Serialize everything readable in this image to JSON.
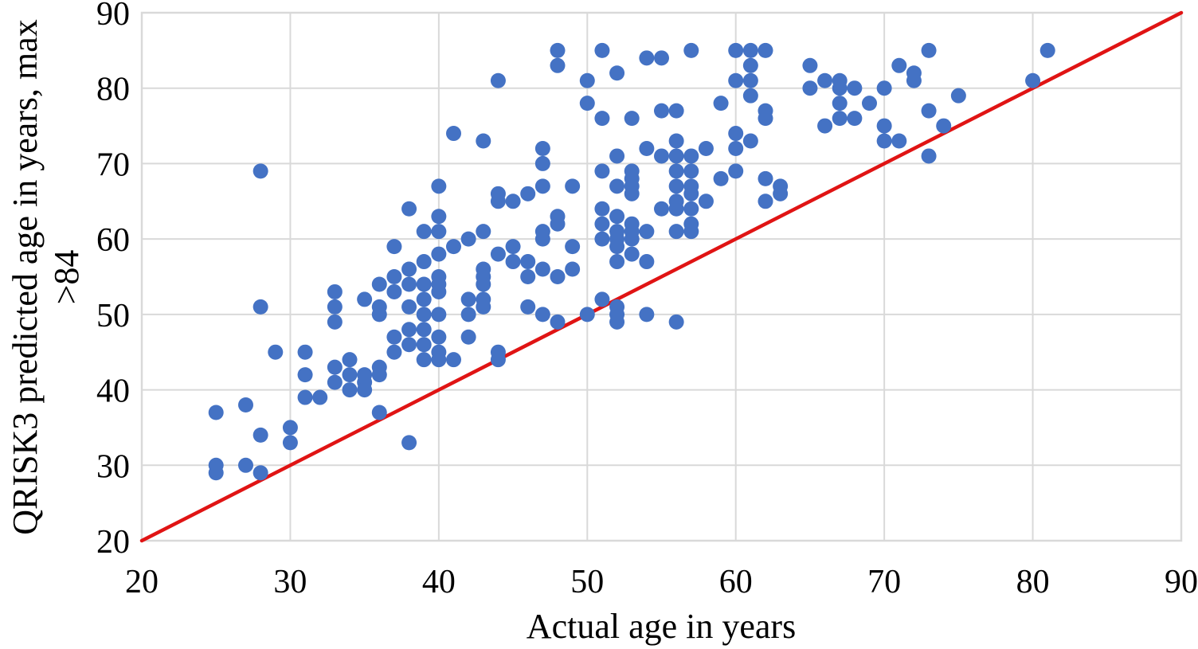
{
  "chart_data": {
    "type": "scatter",
    "title": "",
    "xlabel": "Actual age in years",
    "ylabel_lines": [
      "QRISK3 predicted age in years, max",
      ">84"
    ],
    "xlim": [
      20,
      90
    ],
    "ylim": [
      20,
      90
    ],
    "x_ticks": [
      20,
      30,
      40,
      50,
      60,
      70,
      80,
      90
    ],
    "y_ticks": [
      20,
      30,
      40,
      50,
      60,
      70,
      80,
      90
    ],
    "grid": "on",
    "legend": "none",
    "colors": {
      "marker": "#4472C4",
      "reference_line": "#e01414",
      "gridline": "#d9d9d9",
      "text": "#000000"
    },
    "series": [
      {
        "name": "QRISK3 predicted age vs actual age",
        "type": "scatter",
        "color": "#4472C4",
        "points": [
          [
            25,
            37
          ],
          [
            27,
            38
          ],
          [
            28,
            34
          ],
          [
            30,
            35
          ],
          [
            30,
            33
          ],
          [
            25,
            30
          ],
          [
            25,
            29
          ],
          [
            27,
            30
          ],
          [
            28,
            29
          ],
          [
            28,
            51
          ],
          [
            28,
            69
          ],
          [
            29,
            45
          ],
          [
            31,
            45
          ],
          [
            31,
            42
          ],
          [
            31,
            39
          ],
          [
            32,
            39
          ],
          [
            33,
            53
          ],
          [
            33,
            51
          ],
          [
            33,
            49
          ],
          [
            33,
            43
          ],
          [
            33,
            41
          ],
          [
            34,
            44
          ],
          [
            34,
            42
          ],
          [
            34,
            40
          ],
          [
            35,
            52
          ],
          [
            35,
            42
          ],
          [
            35,
            41
          ],
          [
            35,
            40
          ],
          [
            36,
            54
          ],
          [
            36,
            51
          ],
          [
            36,
            50
          ],
          [
            36,
            43
          ],
          [
            36,
            42
          ],
          [
            36,
            37
          ],
          [
            37,
            59
          ],
          [
            37,
            55
          ],
          [
            37,
            53
          ],
          [
            37,
            47
          ],
          [
            37,
            45
          ],
          [
            38,
            64
          ],
          [
            38,
            56
          ],
          [
            38,
            54
          ],
          [
            38,
            51
          ],
          [
            38,
            48
          ],
          [
            38,
            46
          ],
          [
            38,
            33
          ],
          [
            39,
            61
          ],
          [
            39,
            57
          ],
          [
            39,
            54
          ],
          [
            39,
            52
          ],
          [
            39,
            50
          ],
          [
            39,
            48
          ],
          [
            39,
            46
          ],
          [
            39,
            44
          ],
          [
            40,
            67
          ],
          [
            40,
            63
          ],
          [
            40,
            61
          ],
          [
            40,
            58
          ],
          [
            40,
            55
          ],
          [
            40,
            54
          ],
          [
            40,
            53
          ],
          [
            40,
            50
          ],
          [
            40,
            47
          ],
          [
            40,
            45
          ],
          [
            40,
            44
          ],
          [
            41,
            74
          ],
          [
            41,
            59
          ],
          [
            41,
            44
          ],
          [
            42,
            60
          ],
          [
            42,
            52
          ],
          [
            42,
            50
          ],
          [
            42,
            47
          ],
          [
            43,
            73
          ],
          [
            43,
            61
          ],
          [
            43,
            56
          ],
          [
            43,
            55
          ],
          [
            43,
            54
          ],
          [
            43,
            52
          ],
          [
            43,
            51
          ],
          [
            44,
            81
          ],
          [
            44,
            66
          ],
          [
            44,
            65
          ],
          [
            44,
            58
          ],
          [
            44,
            45
          ],
          [
            44,
            44
          ],
          [
            45,
            65
          ],
          [
            45,
            59
          ],
          [
            45,
            57
          ],
          [
            46,
            66
          ],
          [
            46,
            57
          ],
          [
            46,
            55
          ],
          [
            46,
            51
          ],
          [
            47,
            72
          ],
          [
            47,
            70
          ],
          [
            47,
            67
          ],
          [
            47,
            61
          ],
          [
            47,
            60
          ],
          [
            47,
            56
          ],
          [
            47,
            50
          ],
          [
            48,
            85
          ],
          [
            48,
            83
          ],
          [
            48,
            63
          ],
          [
            48,
            62
          ],
          [
            48,
            55
          ],
          [
            48,
            49
          ],
          [
            49,
            67
          ],
          [
            49,
            59
          ],
          [
            49,
            56
          ],
          [
            50,
            81
          ],
          [
            50,
            78
          ],
          [
            50,
            50
          ],
          [
            51,
            85
          ],
          [
            51,
            76
          ],
          [
            51,
            69
          ],
          [
            51,
            64
          ],
          [
            51,
            62
          ],
          [
            51,
            60
          ],
          [
            51,
            52
          ],
          [
            52,
            82
          ],
          [
            52,
            71
          ],
          [
            52,
            67
          ],
          [
            52,
            63
          ],
          [
            52,
            61
          ],
          [
            52,
            60
          ],
          [
            52,
            59
          ],
          [
            52,
            57
          ],
          [
            52,
            51
          ],
          [
            52,
            50
          ],
          [
            52,
            49
          ],
          [
            53,
            76
          ],
          [
            53,
            69
          ],
          [
            53,
            68
          ],
          [
            53,
            67
          ],
          [
            53,
            66
          ],
          [
            53,
            62
          ],
          [
            53,
            61
          ],
          [
            53,
            60
          ],
          [
            53,
            58
          ],
          [
            54,
            84
          ],
          [
            54,
            72
          ],
          [
            54,
            61
          ],
          [
            54,
            57
          ],
          [
            54,
            50
          ],
          [
            55,
            84
          ],
          [
            55,
            77
          ],
          [
            55,
            71
          ],
          [
            55,
            64
          ],
          [
            56,
            77
          ],
          [
            56,
            73
          ],
          [
            56,
            71
          ],
          [
            56,
            69
          ],
          [
            56,
            67
          ],
          [
            56,
            65
          ],
          [
            56,
            64
          ],
          [
            56,
            61
          ],
          [
            56,
            49
          ],
          [
            57,
            85
          ],
          [
            57,
            71
          ],
          [
            57,
            69
          ],
          [
            57,
            67
          ],
          [
            57,
            66
          ],
          [
            57,
            64
          ],
          [
            57,
            62
          ],
          [
            57,
            61
          ],
          [
            58,
            72
          ],
          [
            58,
            65
          ],
          [
            59,
            78
          ],
          [
            59,
            68
          ],
          [
            60,
            85
          ],
          [
            60,
            81
          ],
          [
            60,
            74
          ],
          [
            60,
            72
          ],
          [
            60,
            69
          ],
          [
            61,
            85
          ],
          [
            61,
            83
          ],
          [
            61,
            81
          ],
          [
            61,
            79
          ],
          [
            61,
            73
          ],
          [
            62,
            85
          ],
          [
            62,
            77
          ],
          [
            62,
            76
          ],
          [
            62,
            68
          ],
          [
            62,
            65
          ],
          [
            63,
            67
          ],
          [
            63,
            66
          ],
          [
            65,
            83
          ],
          [
            65,
            80
          ],
          [
            66,
            81
          ],
          [
            66,
            75
          ],
          [
            67,
            81
          ],
          [
            67,
            80
          ],
          [
            67,
            78
          ],
          [
            67,
            76
          ],
          [
            68,
            80
          ],
          [
            68,
            76
          ],
          [
            69,
            78
          ],
          [
            70,
            80
          ],
          [
            70,
            75
          ],
          [
            70,
            73
          ],
          [
            71,
            83
          ],
          [
            71,
            73
          ],
          [
            72,
            82
          ],
          [
            72,
            81
          ],
          [
            73,
            85
          ],
          [
            73,
            77
          ],
          [
            73,
            71
          ],
          [
            74,
            75
          ],
          [
            75,
            79
          ],
          [
            80,
            81
          ],
          [
            81,
            85
          ]
        ]
      },
      {
        "name": "identity reference line",
        "type": "line",
        "color": "#e01414",
        "points": [
          [
            20,
            20
          ],
          [
            90,
            90
          ]
        ]
      }
    ]
  }
}
